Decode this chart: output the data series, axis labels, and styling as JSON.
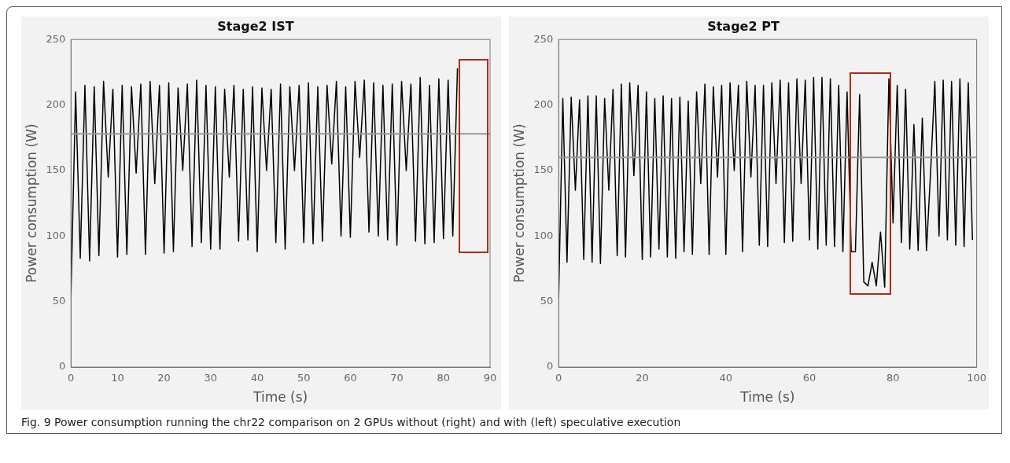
{
  "chart_data": [
    {
      "type": "line",
      "title": "Stage2 IST",
      "xlabel": "Time (s)",
      "ylabel": "Power consumption (W)",
      "xlim": [
        0,
        90
      ],
      "xticks": [
        0,
        10,
        20,
        30,
        40,
        50,
        60,
        70,
        80,
        90
      ],
      "ylim": [
        0,
        250
      ],
      "yticks": [
        0,
        50,
        100,
        150,
        200,
        250
      ],
      "grid": false,
      "legend": false,
      "marker": "none",
      "line_style": "solid",
      "x": [
        0,
        1,
        2,
        3,
        4,
        5,
        6,
        7,
        8,
        9,
        10,
        11,
        12,
        13,
        14,
        15,
        16,
        17,
        18,
        19,
        20,
        21,
        22,
        23,
        24,
        25,
        26,
        27,
        28,
        29,
        30,
        31,
        32,
        33,
        34,
        35,
        36,
        37,
        38,
        39,
        40,
        41,
        42,
        43,
        44,
        45,
        46,
        47,
        48,
        49,
        50,
        51,
        52,
        53,
        54,
        55,
        56,
        57,
        58,
        59,
        60,
        61,
        62,
        63,
        64,
        65,
        66,
        67,
        68,
        69,
        70,
        71,
        72,
        73,
        74,
        75,
        76,
        77,
        78,
        79,
        80,
        81,
        82,
        83
      ],
      "series": [
        {
          "color": "#000000",
          "values": [
            55,
            210,
            83,
            215,
            81,
            214,
            85,
            218,
            145,
            212,
            84,
            215,
            86,
            214,
            148,
            216,
            86,
            218,
            140,
            215,
            87,
            217,
            88,
            213,
            150,
            216,
            92,
            219,
            95,
            215,
            90,
            214,
            90,
            212,
            145,
            215,
            96,
            212,
            97,
            214,
            88,
            213,
            150,
            212,
            95,
            216,
            90,
            214,
            150,
            215,
            95,
            217,
            94,
            214,
            96,
            215,
            155,
            218,
            100,
            214,
            99,
            218,
            160,
            219,
            103,
            217,
            100,
            215,
            97,
            216,
            93,
            218,
            150,
            216,
            96,
            221,
            94,
            215,
            95,
            220,
            98,
            219,
            100,
            228
          ]
        }
      ],
      "ref_lines": [
        {
          "axis": "y",
          "value": 178,
          "color": "#999999"
        }
      ],
      "annotations": [
        "Fig. 9 Power consumption running the chr22 comparison on 2 GPUs without (right) and with (left) speculative execution"
      ]
    },
    {
      "type": "line",
      "title": "Stage2 PT",
      "xlabel": "Time (s)",
      "ylabel": "Power consumption (W)",
      "xlim": [
        0,
        100
      ],
      "xticks": [
        0,
        20,
        40,
        60,
        80,
        100
      ],
      "ylim": [
        0,
        250
      ],
      "yticks": [
        0,
        50,
        100,
        150,
        200,
        250
      ],
      "grid": false,
      "legend": false,
      "marker": "none",
      "line_style": "solid",
      "x": [
        0,
        1,
        2,
        3,
        4,
        5,
        6,
        7,
        8,
        9,
        10,
        11,
        12,
        13,
        14,
        15,
        16,
        17,
        18,
        19,
        20,
        21,
        22,
        23,
        24,
        25,
        26,
        27,
        28,
        29,
        30,
        31,
        32,
        33,
        34,
        35,
        36,
        37,
        38,
        39,
        40,
        41,
        42,
        43,
        44,
        45,
        46,
        47,
        48,
        49,
        50,
        51,
        52,
        53,
        54,
        55,
        56,
        57,
        58,
        59,
        60,
        61,
        62,
        63,
        64,
        65,
        66,
        67,
        68,
        69,
        70,
        71,
        72,
        73,
        74,
        75,
        76,
        77,
        78,
        79,
        80,
        81,
        82,
        83,
        84,
        85,
        86,
        87,
        88,
        89,
        90,
        91,
        92,
        93,
        94,
        95,
        96,
        97,
        98,
        99
      ],
      "series": [
        {
          "color": "#000000",
          "values": [
            53,
            205,
            80,
            206,
            135,
            204,
            82,
            207,
            80,
            207,
            79,
            205,
            135,
            212,
            85,
            216,
            84,
            217,
            146,
            215,
            82,
            210,
            84,
            205,
            90,
            207,
            84,
            205,
            83,
            206,
            88,
            203,
            86,
            210,
            140,
            216,
            86,
            214,
            145,
            215,
            86,
            217,
            150,
            215,
            88,
            218,
            145,
            215,
            93,
            215,
            92,
            217,
            140,
            219,
            95,
            217,
            96,
            220,
            140,
            219,
            97,
            221,
            90,
            221,
            93,
            220,
            92,
            215,
            88,
            210,
            88,
            88,
            208,
            65,
            62,
            80,
            62,
            103,
            61,
            220,
            110,
            215,
            95,
            212,
            90,
            185,
            89,
            190,
            89,
            150,
            218,
            100,
            219,
            97,
            218,
            93,
            220,
            92,
            217,
            97
          ]
        }
      ],
      "ref_lines": [
        {
          "axis": "y",
          "value": 160,
          "color": "#999999"
        }
      ]
    }
  ]
}
